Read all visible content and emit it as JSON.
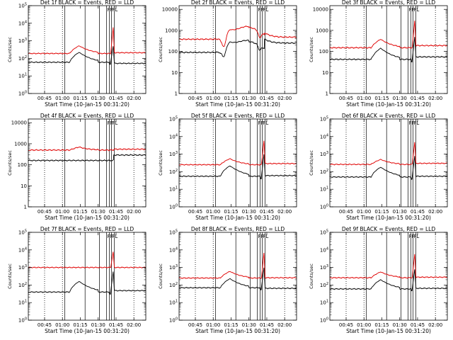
{
  "figure": {
    "x_ticks": [
      "00:45",
      "01:00",
      "01:15",
      "01:30",
      "01:45",
      "02:00"
    ],
    "x_tick_minutes": [
      45,
      60,
      75,
      90,
      105,
      120
    ],
    "xlabel": "Start Time (10-Jan-15 00:31:20)",
    "ylabel": "Counts/sec",
    "xlim_minutes": [
      31.33,
      130
    ],
    "dotted_vlines_minutes": [
      45,
      60,
      120
    ],
    "solid_vlines_minutes": [
      62,
      79,
      91,
      97,
      99.3,
      101.2,
      103.5
    ],
    "flag_labels": [
      "F",
      "F",
      "F",
      "L"
    ],
    "colors": {
      "events": "#000000",
      "lld": "#e00000",
      "axis": "#000000"
    }
  },
  "chart_data": [
    {
      "type": "line",
      "title": "Det 1f BLACK = Events, RED = LLD",
      "ylog": true,
      "ylim": [
        1,
        100000
      ],
      "yticks": [
        1,
        10,
        100,
        1000,
        10000,
        100000
      ],
      "ytick_labels": [
        "10^0",
        "10^1",
        "10^2",
        "10^3",
        "10^4",
        "10^5"
      ],
      "series": [
        {
          "name": "Events",
          "color": "#000000",
          "base": 60,
          "bump": 160,
          "post": 52,
          "spike": 500,
          "hump": 0,
          "dip": 0
        },
        {
          "name": "LLD",
          "color": "#e00000",
          "base": 190,
          "bump": 330,
          "post": 210,
          "spike": 6000,
          "hump": 0,
          "dip": 0
        }
      ]
    },
    {
      "type": "line",
      "title": "Det 2f BLACK = Events, RED = LLD",
      "ylog": true,
      "ylim": [
        1,
        15000
      ],
      "yticks": [
        1,
        10,
        100,
        1000,
        10000
      ],
      "ytick_labels": [
        "1",
        "10",
        "100",
        "1000",
        "10000"
      ],
      "series": [
        {
          "name": "Events",
          "color": "#000000",
          "base": 90,
          "bump": 130,
          "post": 250,
          "spike": 0,
          "hump": 1.3,
          "dip": 0.55
        },
        {
          "name": "LLD",
          "color": "#e00000",
          "base": 380,
          "bump": 450,
          "post": 480,
          "spike": 0,
          "hump": 1.5,
          "dip": 0.45
        }
      ]
    },
    {
      "type": "line",
      "title": "Det 3f BLACK = Events, RED = LLD",
      "ylog": true,
      "ylim": [
        1,
        15000
      ],
      "yticks": [
        1,
        10,
        100,
        1000,
        10000
      ],
      "ytick_labels": [
        "1",
        "10",
        "100",
        "1000",
        "10000"
      ],
      "series": [
        {
          "name": "Events",
          "color": "#000000",
          "base": 42,
          "bump": 100,
          "post": 55,
          "spike": 500,
          "hump": 0,
          "dip": 0
        },
        {
          "name": "LLD",
          "color": "#e00000",
          "base": 150,
          "bump": 230,
          "post": 190,
          "spike": 3000,
          "hump": 0,
          "dip": 0
        }
      ]
    },
    {
      "type": "line",
      "title": "Det 4f BLACK = Events, RED = LLD",
      "ylog": true,
      "ylim": [
        1,
        15000
      ],
      "yticks": [
        1,
        10,
        100,
        1000,
        10000
      ],
      "ytick_labels": [
        "1",
        "10",
        "100",
        "1000",
        "10000"
      ],
      "series": [
        {
          "name": "Events",
          "color": "#000000",
          "base": 160,
          "bump": 0,
          "post": 290,
          "spike": 0,
          "hump": 0,
          "dip": 0
        },
        {
          "name": "LLD",
          "color": "#e00000",
          "base": 500,
          "bump": 200,
          "post": 550,
          "spike": 0,
          "hump": 0,
          "dip": 0
        }
      ]
    },
    {
      "type": "line",
      "title": "Det 5f BLACK = Events, RED = LLD",
      "ylog": true,
      "ylim": [
        1,
        100000
      ],
      "yticks": [
        1,
        10,
        100,
        1000,
        10000,
        100000
      ],
      "ytick_labels": [
        "10^0",
        "10^1",
        "10^2",
        "10^3",
        "10^4",
        "10^5"
      ],
      "series": [
        {
          "name": "Events",
          "color": "#000000",
          "base": 55,
          "bump": 160,
          "post": 60,
          "spike": 1000,
          "hump": 0,
          "dip": 0
        },
        {
          "name": "LLD",
          "color": "#e00000",
          "base": 250,
          "bump": 300,
          "post": 290,
          "spike": 6000,
          "hump": 0,
          "dip": 0
        }
      ]
    },
    {
      "type": "line",
      "title": "Det 6f BLACK = Events, RED = LLD",
      "ylog": true,
      "ylim": [
        1,
        100000
      ],
      "yticks": [
        1,
        10,
        100,
        1000,
        10000,
        100000
      ],
      "ytick_labels": [
        "10^0",
        "10^1",
        "10^2",
        "10^3",
        "10^4",
        "10^5"
      ],
      "series": [
        {
          "name": "Events",
          "color": "#000000",
          "base": 50,
          "bump": 130,
          "post": 55,
          "spike": 800,
          "hump": 0,
          "dip": 0
        },
        {
          "name": "LLD",
          "color": "#e00000",
          "base": 260,
          "bump": 240,
          "post": 300,
          "spike": 5000,
          "hump": 0,
          "dip": 0
        }
      ]
    },
    {
      "type": "line",
      "title": "Det 7f BLACK = Events, RED = LLD",
      "ylog": true,
      "ylim": [
        1,
        100000
      ],
      "yticks": [
        1,
        10,
        100,
        1000,
        10000,
        100000
      ],
      "ytick_labels": [
        "10^0",
        "10^1",
        "10^2",
        "10^3",
        "10^4",
        "10^5"
      ],
      "series": [
        {
          "name": "Events",
          "color": "#000000",
          "base": 40,
          "bump": 120,
          "post": 48,
          "spike": 600,
          "hump": 0,
          "dip": 0
        },
        {
          "name": "LLD",
          "color": "#e00000",
          "base": 1000,
          "bump": 0,
          "post": 1000,
          "spike": 8000,
          "hump": 0,
          "dip": 0
        }
      ]
    },
    {
      "type": "line",
      "title": "Det 8f BLACK = Events, RED = LLD",
      "ylog": true,
      "ylim": [
        1,
        100000
      ],
      "yticks": [
        1,
        10,
        100,
        1000,
        10000,
        100000
      ],
      "ytick_labels": [
        "10^0",
        "10^1",
        "10^2",
        "10^3",
        "10^4",
        "10^5"
      ],
      "series": [
        {
          "name": "Events",
          "color": "#000000",
          "base": 70,
          "bump": 160,
          "post": 65,
          "spike": 1000,
          "hump": 0,
          "dip": 0
        },
        {
          "name": "LLD",
          "color": "#e00000",
          "base": 250,
          "bump": 350,
          "post": 260,
          "spike": 7000,
          "hump": 0,
          "dip": 0
        }
      ]
    },
    {
      "type": "line",
      "title": "Det 9f BLACK = Events, RED = LLD",
      "ylog": true,
      "ylim": [
        1,
        100000
      ],
      "yticks": [
        1,
        10,
        100,
        1000,
        10000,
        100000
      ],
      "ytick_labels": [
        "10^0",
        "10^1",
        "10^2",
        "10^3",
        "10^4",
        "10^5"
      ],
      "series": [
        {
          "name": "Events",
          "color": "#000000",
          "base": 60,
          "bump": 140,
          "post": 65,
          "spike": 800,
          "hump": 0,
          "dip": 0
        },
        {
          "name": "LLD",
          "color": "#e00000",
          "base": 260,
          "bump": 300,
          "post": 280,
          "spike": 6000,
          "hump": 0,
          "dip": 0
        }
      ]
    }
  ]
}
